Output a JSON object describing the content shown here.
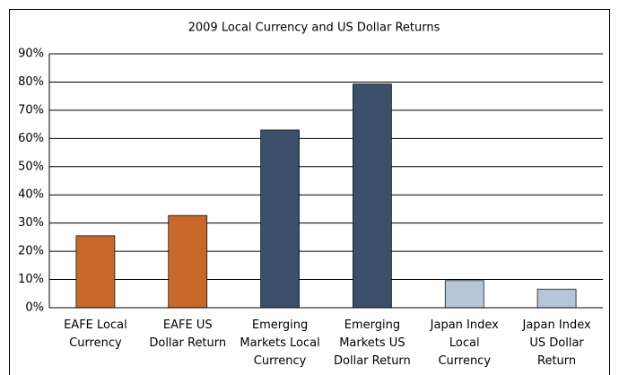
{
  "chart_data": {
    "type": "bar",
    "title": "2009 Local Currency and US Dollar Returns",
    "categories": [
      "EAFE Local\nCurrency",
      "EAFE US\nDollar Return",
      "Emerging\nMarkets Local\nCurrency",
      "Emerging\nMarkets US\nDollar Return",
      "Japan Index\nLocal\nCurrency",
      "Japan Index\nUS Dollar\nReturn"
    ],
    "values": [
      25.5,
      32.7,
      63,
      79.3,
      9.6,
      6.6
    ],
    "colors": [
      "#c8682a",
      "#c8682a",
      "#3b4f6b",
      "#3b4f6b",
      "#b4c6d8",
      "#b4c6d8"
    ],
    "ylim": [
      0,
      90
    ],
    "yticks": [
      {
        "value": 0,
        "label": "0%"
      },
      {
        "value": 10,
        "label": "10%"
      },
      {
        "value": 20,
        "label": "20%"
      },
      {
        "value": 30,
        "label": "30%"
      },
      {
        "value": 40,
        "label": "40%"
      },
      {
        "value": 50,
        "label": "50%"
      },
      {
        "value": 60,
        "label": "60%"
      },
      {
        "value": 70,
        "label": "70%"
      },
      {
        "value": 80,
        "label": "80%"
      },
      {
        "value": 90,
        "label": "90%"
      }
    ],
    "grid": true
  }
}
